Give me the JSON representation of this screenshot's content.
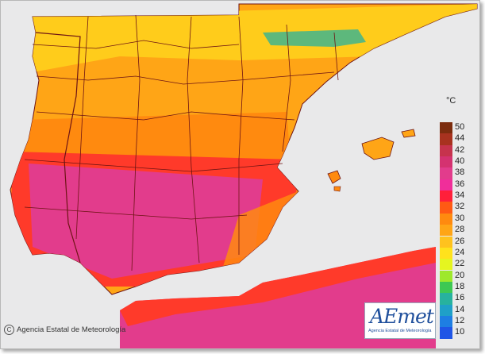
{
  "map": {
    "sea_color": "#e9e9ea",
    "boundary_color": "#6e1414"
  },
  "legend": {
    "unit": "°C",
    "steps": [
      {
        "label": "50",
        "color": "#7c2c0e"
      },
      {
        "label": "44",
        "color": "#a8321f"
      },
      {
        "label": "42",
        "color": "#c6334d"
      },
      {
        "label": "40",
        "color": "#d43270"
      },
      {
        "label": "38",
        "color": "#e23c8c"
      },
      {
        "label": "36",
        "color": "#f02e9a"
      },
      {
        "label": "34",
        "color": "#ff1f3a"
      },
      {
        "label": "32",
        "color": "#ff5a14"
      },
      {
        "label": "30",
        "color": "#ff8a0f"
      },
      {
        "label": "28",
        "color": "#ffa516"
      },
      {
        "label": "26",
        "color": "#ffc21e"
      },
      {
        "label": "24",
        "color": "#ffe21c"
      },
      {
        "label": "22",
        "color": "#e5f520"
      },
      {
        "label": "20",
        "color": "#9ee82c"
      },
      {
        "label": "18",
        "color": "#3ec853"
      },
      {
        "label": "16",
        "color": "#27b29e"
      },
      {
        "label": "14",
        "color": "#1fa0c8"
      },
      {
        "label": "12",
        "color": "#1e7ee3"
      },
      {
        "label": "10",
        "color": "#1f55e6"
      }
    ]
  },
  "credit": {
    "icon": "copyright-icon",
    "text": "Agencia Estatal de Meteorología"
  },
  "logo": {
    "word": "AEmet",
    "subtitle": "Agencia Estatal de Meteorología"
  }
}
